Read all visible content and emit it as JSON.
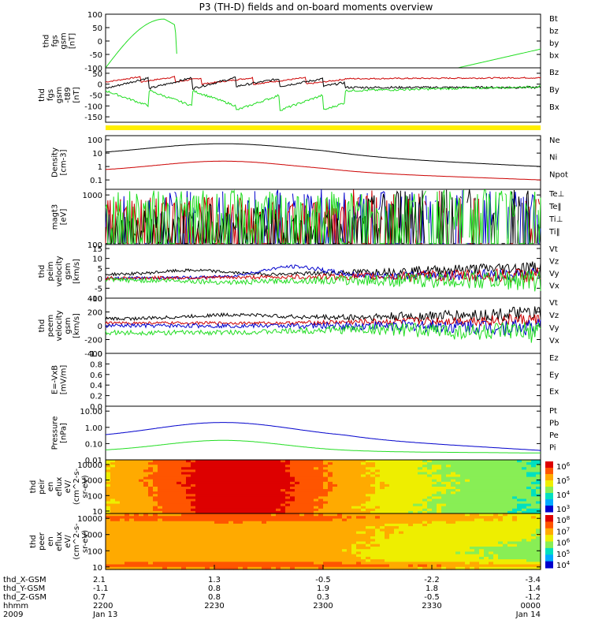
{
  "title": "P3 (TH-D) fields and on-board moments overview",
  "colors": {
    "black": "#000000",
    "red": "#cc0000",
    "green": "#22dd22",
    "blue": "#0000cc",
    "yellow": "#ffee00"
  },
  "chart_data": [
    {
      "type": "line",
      "key": "fgs",
      "ylabel": [
        "thd",
        "fgs",
        "gsm",
        "[nT]"
      ],
      "ylim": [
        -100,
        100
      ],
      "yscale": "linear",
      "ticks": [
        "100",
        "50",
        "0",
        "-50",
        "-100"
      ],
      "legend": [
        {
          "label": "Bt",
          "color": "black"
        },
        {
          "label": "bz",
          "color": "red"
        },
        {
          "label": "by",
          "color": "green"
        },
        {
          "label": "bx",
          "color": "blue"
        }
      ]
    },
    {
      "type": "line",
      "key": "fgs_t89",
      "ylabel": [
        "thd",
        "fgs",
        "gsm",
        "-t89",
        "[nT]"
      ],
      "ylim": [
        -175,
        75
      ],
      "yscale": "linear",
      "ticks": [
        "50",
        "0",
        "-50",
        "-100",
        "-150"
      ],
      "legend": [
        {
          "label": "Bz",
          "color": "red"
        },
        {
          "label": "By",
          "color": "green"
        },
        {
          "label": "Bx",
          "color": "blue"
        }
      ]
    },
    {
      "type": "line",
      "key": "density",
      "ylabel": [
        "Density",
        "[cm-3]"
      ],
      "ylim": [
        0.02,
        200
      ],
      "yscale": "log",
      "ticks": [
        "100",
        "10",
        "1",
        "0.1"
      ],
      "legend": [
        {
          "label": "Ne",
          "color": "red"
        },
        {
          "label": "Ni",
          "color": "black"
        },
        {
          "label": "Npot",
          "color": "blue"
        }
      ]
    },
    {
      "type": "line",
      "key": "temp",
      "ylabel": [
        "magt3",
        "[eV]"
      ],
      "ylim": [
        100,
        1300
      ],
      "yscale": "log",
      "ticks": [
        "1000",
        "100"
      ],
      "legend": [
        {
          "label": "Te⊥",
          "color": "red"
        },
        {
          "label": "Te‖",
          "color": "black"
        },
        {
          "label": "Ti⊥",
          "color": "blue"
        },
        {
          "label": "Ti‖",
          "color": "green"
        }
      ]
    },
    {
      "type": "line",
      "key": "vel_ion",
      "ylabel": [
        "thd",
        "peim",
        "velocity",
        "gsm",
        "[km/s]"
      ],
      "ylim": [
        -10,
        17
      ],
      "yscale": "linear",
      "ticks": [
        "15",
        "10",
        "5",
        "0",
        "-5",
        "-10"
      ],
      "legend": [
        {
          "label": "Vt",
          "color": "black"
        },
        {
          "label": "Vz",
          "color": "red"
        },
        {
          "label": "Vy",
          "color": "green"
        },
        {
          "label": "Vx",
          "color": "blue"
        }
      ]
    },
    {
      "type": "line",
      "key": "vel_elec",
      "ylabel": [
        "thd",
        "peem",
        "velocity",
        "gsm",
        "[km/s]"
      ],
      "ylim": [
        -400,
        400
      ],
      "yscale": "linear",
      "ticks": [
        "400",
        "200",
        "0",
        "-200",
        "-400"
      ],
      "legend": [
        {
          "label": "Vt",
          "color": "black"
        },
        {
          "label": "Vz",
          "color": "red"
        },
        {
          "label": "Vy",
          "color": "green"
        },
        {
          "label": "Vx",
          "color": "blue"
        }
      ]
    },
    {
      "type": "line",
      "key": "efield",
      "ylabel": [
        "E=-VxB",
        "[mV/m]"
      ],
      "ylim": [
        0,
        1
      ],
      "yscale": "linear",
      "ticks": [
        "1.0",
        "0.8",
        "0.6",
        "0.4",
        "0.2",
        "0.0"
      ],
      "legend": [
        {
          "label": "Ez",
          "color": "red"
        },
        {
          "label": "Ey",
          "color": "green"
        },
        {
          "label": "Ex",
          "color": "blue"
        }
      ]
    },
    {
      "type": "line",
      "key": "pressure",
      "ylabel": [
        "Pressure",
        "[nPa]"
      ],
      "ylim": [
        0.01,
        20
      ],
      "yscale": "log",
      "ticks": [
        "10.00",
        "1.00",
        "0.10",
        "0.01"
      ],
      "legend": [
        {
          "label": "Pt",
          "color": "black"
        },
        {
          "label": "Pb",
          "color": "red"
        },
        {
          "label": "Pe",
          "color": "green"
        },
        {
          "label": "Pi",
          "color": "blue"
        }
      ]
    },
    {
      "type": "heatmap",
      "key": "ion_spec",
      "ylabel": [
        "thd",
        "peir",
        "en",
        "eflux",
        "eV/",
        "(cm^2-s-",
        "sr-eV)"
      ],
      "ylim": [
        7,
        20000
      ],
      "yscale": "log",
      "ticks": [
        "10000",
        "1000",
        "100",
        "10"
      ],
      "colorbar": {
        "base": "10",
        "exponents": [
          "6",
          "5",
          "4",
          "3"
        ]
      }
    },
    {
      "type": "heatmap",
      "key": "elec_spec",
      "ylabel": [
        "thd",
        "peer",
        "en",
        "eflux",
        "eV/",
        "(cm^2-s-",
        "sr-eV)"
      ],
      "ylim": [
        7,
        20000
      ],
      "yscale": "log",
      "ticks": [
        "10000",
        "1000",
        "100",
        "10"
      ],
      "colorbar": {
        "base": "10",
        "exponents": [
          "8",
          "7",
          "6",
          "5",
          "4"
        ]
      }
    }
  ],
  "xaxis": {
    "labels": [
      "thd_X-GSM",
      "thd_Y-GSM",
      "thd_Z-GSM",
      "hhmm",
      "2009"
    ],
    "columns": [
      [
        "2.1",
        "-1.1",
        "0.7",
        "2200",
        "Jan 13"
      ],
      [
        "1.3",
        "0.8",
        "0.8",
        "2230",
        ""
      ],
      [
        "-0.5",
        "1.9",
        "0.3",
        "2300",
        ""
      ],
      [
        "-2.2",
        "1.8",
        "-0.5",
        "2330",
        ""
      ],
      [
        "-3.4",
        "1.4",
        "-1.2",
        "0000",
        "Jan 14"
      ]
    ]
  }
}
